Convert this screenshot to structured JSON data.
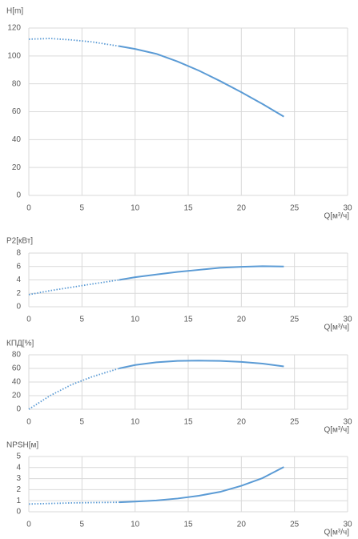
{
  "chart_data": [
    {
      "type": "line",
      "ylabel": "H[m]",
      "xlabel": "Q[м³/ч]",
      "xlim": [
        0,
        30
      ],
      "xticks": [
        0,
        5,
        10,
        15,
        20,
        25,
        30
      ],
      "ylim": [
        0,
        120
      ],
      "yticks": [
        0,
        20,
        40,
        60,
        80,
        100,
        120
      ],
      "grid": true,
      "series": [
        {
          "color": "#5b9bd5",
          "style": "dotted",
          "x": [
            0,
            2,
            4,
            6,
            8.5
          ],
          "values": [
            112,
            112.5,
            111.5,
            110,
            107
          ]
        },
        {
          "color": "#5b9bd5",
          "style": "solid",
          "x": [
            8.5,
            10,
            12,
            14,
            16,
            18,
            20,
            22,
            24
          ],
          "values": [
            107,
            105,
            101.5,
            96,
            89.5,
            82,
            74,
            65.5,
            56.5
          ]
        }
      ]
    },
    {
      "type": "line",
      "ylabel": "P2[кВт]",
      "xlabel": "Q[м³/ч]",
      "xlim": [
        0,
        30
      ],
      "xticks": [
        0,
        5,
        10,
        15,
        20,
        25,
        30
      ],
      "ylim": [
        0,
        8
      ],
      "yticks": [
        0,
        2,
        4,
        6,
        8
      ],
      "grid": true,
      "series": [
        {
          "color": "#5b9bd5",
          "style": "dotted",
          "x": [
            0,
            2,
            4,
            6,
            8.5
          ],
          "values": [
            1.8,
            2.4,
            2.9,
            3.4,
            4.0
          ]
        },
        {
          "color": "#5b9bd5",
          "style": "solid",
          "x": [
            8.5,
            10,
            12,
            14,
            16,
            18,
            20,
            22,
            24
          ],
          "values": [
            4.0,
            4.4,
            4.8,
            5.2,
            5.5,
            5.8,
            5.95,
            6.05,
            6.0
          ]
        }
      ]
    },
    {
      "type": "line",
      "ylabel": "КПД[%]",
      "xlabel": "Q[м³/ч]",
      "xlim": [
        0,
        30
      ],
      "xticks": [
        0,
        5,
        10,
        15,
        20,
        25,
        30
      ],
      "ylim": [
        0,
        80
      ],
      "yticks": [
        0,
        20,
        40,
        60,
        80
      ],
      "grid": true,
      "series": [
        {
          "color": "#5b9bd5",
          "style": "dotted",
          "x": [
            0,
            2,
            4,
            6,
            8.5
          ],
          "values": [
            0,
            20,
            36,
            48,
            60
          ]
        },
        {
          "color": "#5b9bd5",
          "style": "solid",
          "x": [
            8.5,
            10,
            12,
            14,
            16,
            18,
            20,
            22,
            24
          ],
          "values": [
            60,
            65,
            69,
            71,
            71.5,
            71,
            69.5,
            67,
            63
          ]
        }
      ]
    },
    {
      "type": "line",
      "ylabel": "NPSH[м]",
      "xlabel": "Q[м³/ч]",
      "xlim": [
        0,
        30
      ],
      "xticks": [
        0,
        5,
        10,
        15,
        20,
        25,
        30
      ],
      "ylim": [
        0,
        5
      ],
      "yticks": [
        0,
        1,
        2,
        3,
        4,
        5
      ],
      "grid": true,
      "series": [
        {
          "color": "#5b9bd5",
          "style": "dotted",
          "x": [
            0,
            2,
            4,
            6,
            8.5
          ],
          "values": [
            0.7,
            0.75,
            0.8,
            0.83,
            0.86
          ]
        },
        {
          "color": "#5b9bd5",
          "style": "solid",
          "x": [
            8.5,
            10,
            12,
            14,
            16,
            18,
            20,
            22,
            24
          ],
          "values": [
            0.86,
            0.92,
            1.02,
            1.2,
            1.45,
            1.8,
            2.35,
            3.05,
            4.05
          ]
        }
      ]
    }
  ]
}
